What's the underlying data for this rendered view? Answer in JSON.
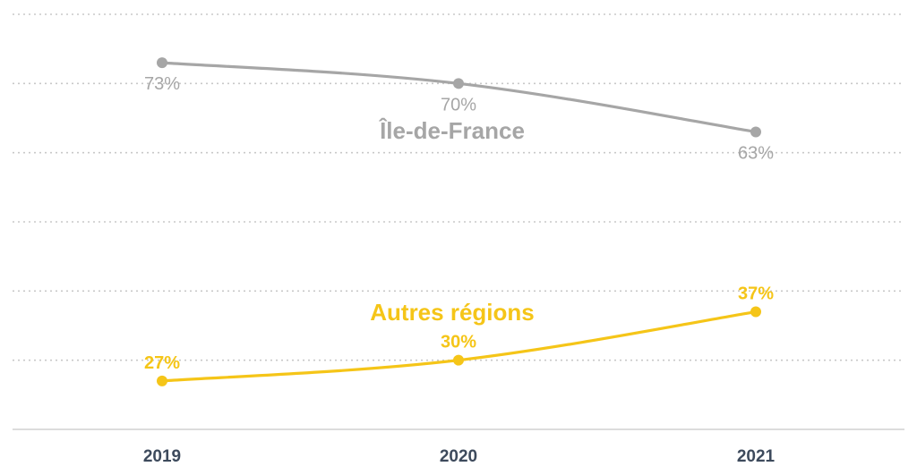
{
  "chart_data": {
    "type": "line",
    "x": [
      "2019",
      "2020",
      "2021"
    ],
    "ylim": [
      20,
      80
    ],
    "grid": true,
    "series": [
      {
        "name": "Île-de-France",
        "values": [
          73,
          70,
          63
        ],
        "labels": [
          "73%",
          "70%",
          "63%"
        ],
        "color": "#a6a6a6"
      },
      {
        "name": "Autres régions",
        "values": [
          27,
          30,
          37
        ],
        "labels": [
          "27%",
          "30%",
          "37%"
        ],
        "color": "#f5c518"
      }
    ]
  }
}
